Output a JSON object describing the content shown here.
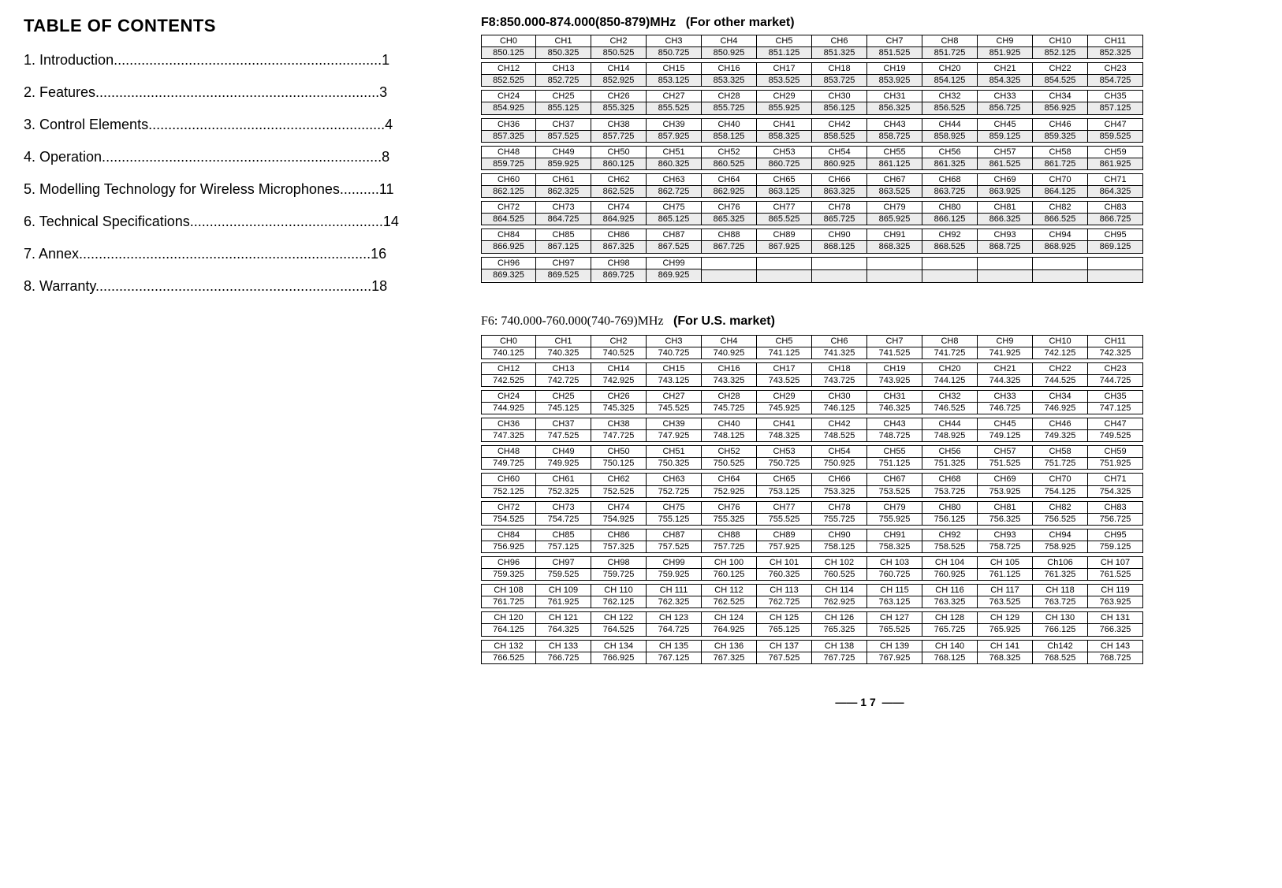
{
  "toc": {
    "title": "TABLE OF CONTENTS",
    "lines": [
      "1. Introduction....................................................................1",
      "2. Features........................................................................3",
      "3. Control Elements............................................................4",
      "4. Operation.......................................................................8",
      "5. Modelling Technology for Wireless Microphones..........11",
      "6. Technical Specifications.................................................14",
      "7. Annex..........................................................................16",
      "8. Warranty......................................................................18"
    ]
  },
  "band_f8": {
    "title": "F8:850.000-874.000(850-879)MHz",
    "market": "(For  other market)",
    "start_freq": 850.125,
    "step": 0.2,
    "channel_count": 100,
    "cols_per_row": 12,
    "ch_prefix": "CH",
    "cell_bg": "#ececec"
  },
  "band_f6": {
    "title": "F6: 740.000-760.000(740-769)MHz",
    "market": "(For  U.S. market)",
    "start_freq": 740.125,
    "step": 0.2,
    "channel_count": 144,
    "cols_per_row": 12,
    "ch_prefix_low": "CH",
    "ch_prefix_high": "CH ",
    "high_threshold": 100,
    "special_labels": {
      "106": "Ch106",
      "142": "Ch142"
    },
    "cell_bg": "#ffffff"
  },
  "page_number": "17"
}
